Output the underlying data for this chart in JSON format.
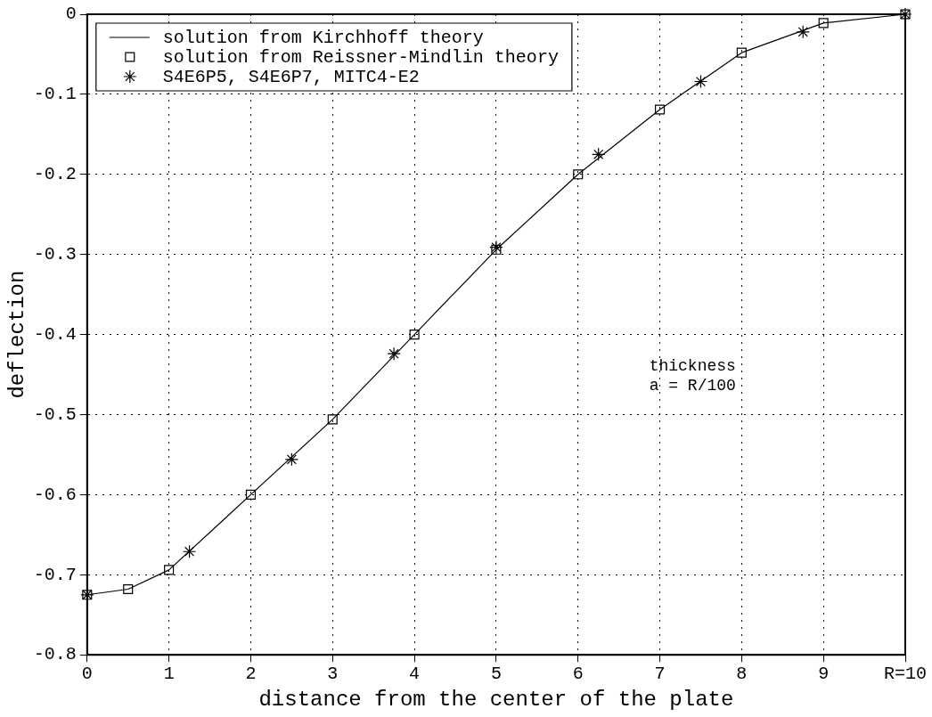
{
  "chart_data": {
    "type": "line",
    "xlabel": "distance from the center of the plate",
    "ylabel": "deflection",
    "xlim": [
      0,
      10
    ],
    "xticks": [
      0,
      1,
      2,
      3,
      4,
      5,
      6,
      7,
      8,
      9,
      {
        "value": 10,
        "label": "R=10"
      }
    ],
    "ylim": [
      -0.8,
      0
    ],
    "yticks": [
      -0.8,
      -0.7,
      -0.6,
      -0.5,
      -0.4,
      -0.3,
      -0.2,
      -0.1,
      0
    ],
    "grid": true,
    "legend": "top left",
    "annotations": [
      "thickness",
      "a = R/100"
    ],
    "series": [
      {
        "name": "solution from Kirchhoff theory",
        "marker": "none",
        "line_style": "solid",
        "color": "#000000",
        "x": [
          0,
          0.5,
          1,
          2,
          3,
          4,
          5,
          6,
          7,
          8,
          9,
          10
        ],
        "values": [
          -0.725,
          -0.718,
          -0.694,
          -0.6,
          -0.506,
          -0.4,
          -0.294,
          -0.2,
          -0.119,
          -0.048,
          -0.011,
          0
        ]
      },
      {
        "name": "solution from Reissner-Mindlin theory",
        "type": "scatter",
        "marker": "square",
        "color": "#000000",
        "x": [
          0,
          0.5,
          1,
          2,
          3,
          4,
          5,
          6,
          7,
          8,
          9,
          10
        ],
        "values": [
          -0.725,
          -0.718,
          -0.694,
          -0.6,
          -0.506,
          -0.4,
          -0.294,
          -0.2,
          -0.119,
          -0.048,
          -0.011,
          0
        ]
      },
      {
        "name": "S4E6P5, S4E6P7, MITC4-E2",
        "type": "scatter",
        "marker": "cross",
        "color": "#000000",
        "x": [
          0,
          1.25,
          2.5,
          3.75,
          5,
          6.25,
          7.5,
          8.75,
          10
        ],
        "values": [
          -0.725,
          -0.671,
          -0.556,
          -0.424,
          -0.291,
          -0.175,
          -0.084,
          -0.022,
          0
        ]
      }
    ]
  }
}
